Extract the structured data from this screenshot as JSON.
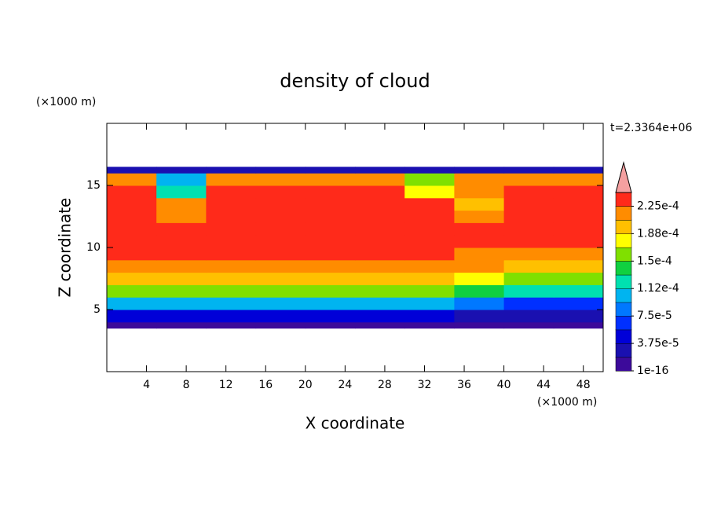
{
  "chart_data": {
    "type": "contour",
    "title": "density of cloud",
    "x_label": "X coordinate",
    "y_label": "Z coordinate",
    "x_unit": "(×1000 m)",
    "y_unit": "(×1000 m)",
    "time_label": "t=2.3364e+06",
    "xlim": [
      0,
      50
    ],
    "ylim": [
      0,
      20
    ],
    "xticks": [
      4,
      8,
      12,
      16,
      20,
      24,
      28,
      32,
      36,
      40,
      44,
      48
    ],
    "yticks": [
      5,
      10,
      15
    ],
    "xbins": [
      0,
      5,
      10,
      15,
      20,
      25,
      30,
      35,
      40,
      45,
      50
    ],
    "ybins": [
      3.5,
      4,
      5,
      6,
      7,
      8,
      9,
      10,
      11,
      12,
      13,
      14,
      15,
      16,
      16.5
    ],
    "values": [
      [
        1e-05,
        1e-05,
        1e-05,
        1e-05,
        1e-05,
        1e-05,
        1e-05,
        1e-05,
        1e-05,
        1e-05
      ],
      [
        5e-05,
        5e-05,
        5e-05,
        5e-05,
        5e-05,
        5e-05,
        5e-05,
        3e-05,
        3e-05,
        3e-05
      ],
      [
        0.00011,
        0.00011,
        0.00011,
        0.00011,
        0.00011,
        0.00011,
        0.00011,
        9e-05,
        6e-05,
        6e-05
      ],
      [
        0.00016,
        0.00016,
        0.00016,
        0.00016,
        0.00016,
        0.00016,
        0.00016,
        0.00014,
        0.00012,
        0.00012
      ],
      [
        0.00019,
        0.00019,
        0.00019,
        0.00019,
        0.00019,
        0.00019,
        0.00019,
        0.00018,
        0.00016,
        0.00016
      ],
      [
        0.000215,
        0.000215,
        0.000215,
        0.000215,
        0.000215,
        0.000215,
        0.000215,
        0.00021,
        0.0002,
        0.0002
      ],
      [
        0.00023,
        0.00023,
        0.00023,
        0.00023,
        0.00023,
        0.00023,
        0.00023,
        0.00022,
        0.00022,
        0.000215
      ],
      [
        0.00023,
        0.00023,
        0.00023,
        0.00023,
        0.00023,
        0.00023,
        0.00023,
        0.00023,
        0.00023,
        0.00023
      ],
      [
        0.00023,
        0.00023,
        0.00023,
        0.00023,
        0.00023,
        0.00023,
        0.00023,
        0.00023,
        0.00023,
        0.00023
      ],
      [
        0.00023,
        0.00022,
        0.00023,
        0.00023,
        0.00023,
        0.00023,
        0.00023,
        0.00022,
        0.00023,
        0.00023
      ],
      [
        0.00023,
        0.00022,
        0.00023,
        0.00023,
        0.00023,
        0.00023,
        0.00023,
        0.00019,
        0.00023,
        0.00023
      ],
      [
        0.00023,
        0.00013,
        0.00023,
        0.00023,
        0.00023,
        0.00023,
        0.00018,
        0.00022,
        0.00023,
        0.00023
      ],
      [
        0.00021,
        0.0001,
        0.00022,
        0.00022,
        0.00022,
        0.00022,
        0.00015,
        0.00021,
        0.00021,
        0.00021
      ],
      [
        3e-05,
        3e-05,
        3e-05,
        3e-05,
        3e-05,
        3e-05,
        3e-05,
        3e-05,
        3e-05,
        3e-05
      ]
    ],
    "levels": [
      1e-16,
      1.875e-05,
      3.75e-05,
      5.625e-05,
      7.5e-05,
      9.375e-05,
      0.0001125,
      0.00013125,
      0.00015,
      0.00016875,
      0.0001875,
      0.00020625,
      0.000225,
      0.00024375
    ],
    "colors": [
      "#3c0a9a",
      "#1a10b0",
      "#0000d8",
      "#0030ff",
      "#0078ff",
      "#00b4f0",
      "#00e0b0",
      "#10d040",
      "#80e000",
      "#ffff00",
      "#ffc000",
      "#ff8c00",
      "#ff2a1a"
    ],
    "extend_color": "#f4a0a0",
    "cticks": [
      {
        "value": 1e-16,
        "label": "1e-16"
      },
      {
        "value": 3.75e-05,
        "label": "3.75e-5"
      },
      {
        "value": 7.5e-05,
        "label": "7.5e-5"
      },
      {
        "value": 0.0001125,
        "label": "1.12e-4"
      },
      {
        "value": 0.00015,
        "label": "1.5e-4"
      },
      {
        "value": 0.0001875,
        "label": "1.88e-4"
      },
      {
        "value": 0.000225,
        "label": "2.25e-4"
      }
    ]
  }
}
